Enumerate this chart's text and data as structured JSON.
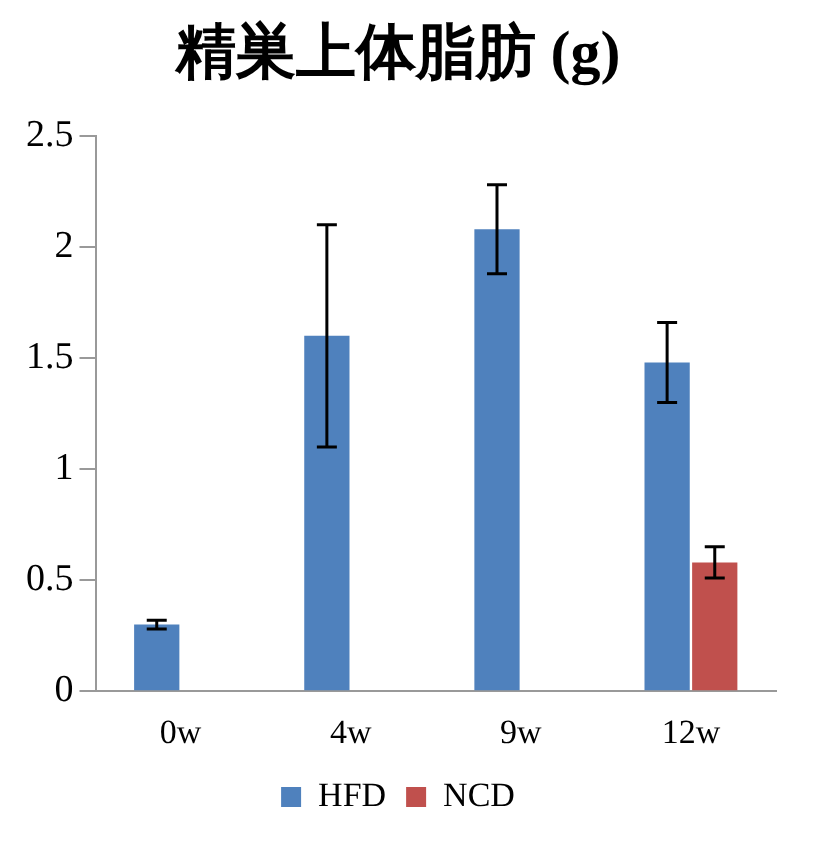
{
  "chart_data": {
    "type": "bar",
    "title": "精巣上体脂肪 (g)",
    "categories": [
      "0w",
      "4w",
      "9w",
      "12w"
    ],
    "series": [
      {
        "name": "HFD",
        "color": "#4f81bd",
        "values": [
          0.3,
          1.6,
          2.08,
          1.48
        ],
        "errors": [
          0.02,
          0.5,
          0.2,
          0.18
        ]
      },
      {
        "name": "NCD",
        "color": "#c0504d",
        "values": [
          null,
          null,
          null,
          0.58
        ],
        "errors": [
          null,
          null,
          null,
          0.07
        ]
      }
    ],
    "ylim": [
      0,
      2.5
    ],
    "yticks": [
      0,
      0.5,
      1,
      1.5,
      2,
      2.5
    ],
    "grid": false,
    "legend": "bottom"
  }
}
